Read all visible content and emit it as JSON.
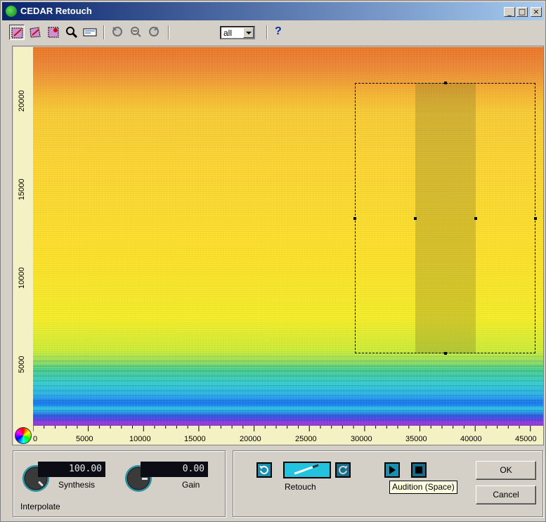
{
  "window": {
    "title": "CEDAR Retouch",
    "minimize": "_",
    "maximize": "□",
    "close": "×"
  },
  "toolbar": {
    "tools": [
      "select-rect-tool",
      "select-freehand-tool",
      "select-brush-tool",
      "zoom-tool",
      "range-tool",
      "zoom-in-tool",
      "zoom-out-tool",
      "zoom-fit-tool"
    ],
    "channel": "all",
    "help": "?"
  },
  "spectrogram": {
    "y_ticks": [
      "20000",
      "15000",
      "10000",
      "5000"
    ],
    "x_ticks": [
      "0",
      "5000",
      "10000",
      "15000",
      "20000",
      "25000",
      "30000",
      "35000",
      "40000",
      "45000"
    ]
  },
  "interpolate": {
    "synthesis_value": "100.00",
    "synthesis_label": "Synthesis",
    "gain_value": "0.00",
    "gain_label": "Gain",
    "section_label": "Interpolate"
  },
  "controls": {
    "retouch_label": "Retouch",
    "audition_tooltip": "Audition (Space)"
  },
  "buttons": {
    "ok": "OK",
    "cancel": "Cancel"
  }
}
